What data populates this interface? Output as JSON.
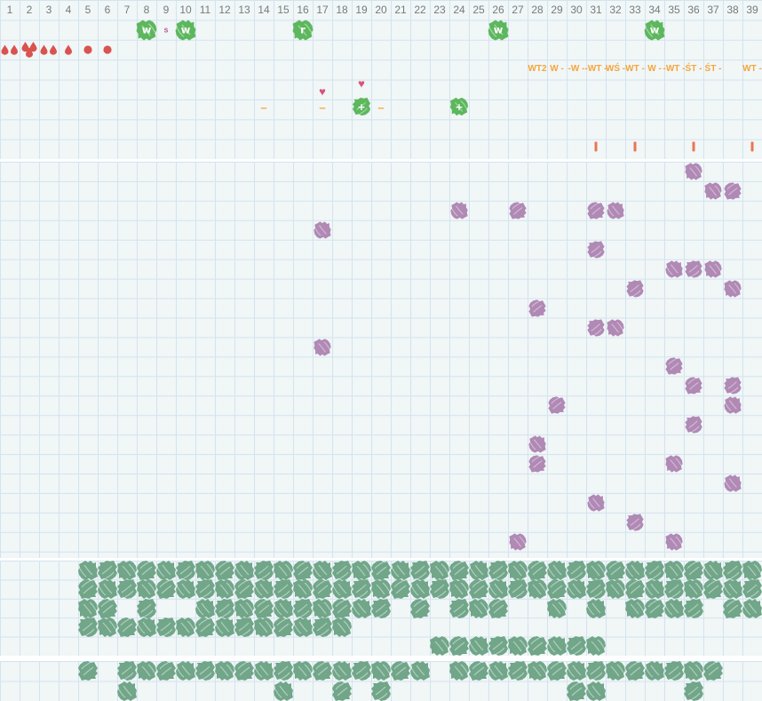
{
  "colors": {
    "cell_bg": "#f1f6f7",
    "grid_line": "#d2e4ee",
    "separator": "#ffffff",
    "day_number_text": "#747c7e",
    "bright_green": "#5db75d",
    "sage_green": "#71a689",
    "purple": "#b189b5",
    "flow_red": "#d9534f",
    "heart_pink": "#d6547a",
    "label_orange": "#f4a63c",
    "tick_orange": "#ec7550",
    "small_letter_pink": "#bb5f9b",
    "blob_letter_white": "#ffffff"
  },
  "day_header": {
    "days": [
      1,
      2,
      3,
      4,
      5,
      6,
      7,
      8,
      9,
      10,
      11,
      12,
      13,
      14,
      15,
      16,
      17,
      18,
      19,
      20,
      21,
      22,
      23,
      24,
      25,
      26,
      27,
      28,
      29,
      30,
      31,
      32,
      33,
      34,
      35,
      36,
      37,
      38,
      39
    ]
  },
  "top_section": {
    "letter_marks": [
      {
        "day": 8,
        "letter": "w"
      },
      {
        "day": 10,
        "letter": "w"
      },
      {
        "day": 16,
        "letter": "r"
      },
      {
        "day": 26,
        "letter": "w"
      },
      {
        "day": 34,
        "letter": "w"
      }
    ],
    "small_letter_mark": {
      "day": 9,
      "letter": "s"
    },
    "flow_marks": [
      {
        "day": 1,
        "icon": "drops-2"
      },
      {
        "day": 2,
        "icon": "drops-3"
      },
      {
        "day": 3,
        "icon": "drops-2"
      },
      {
        "day": 4,
        "icon": "drop-1"
      },
      {
        "day": 5,
        "icon": "dot"
      },
      {
        "day": 6,
        "icon": "dot"
      }
    ],
    "weekday_labels": [
      {
        "day": 28,
        "text": "WT2"
      },
      {
        "day": 29,
        "text": "W -"
      },
      {
        "day": 30,
        "text": "-W -"
      },
      {
        "day": 31,
        "text": "-WT -"
      },
      {
        "day": 32,
        "text": "WŚ -"
      },
      {
        "day": 33,
        "text": "WT -"
      },
      {
        "day": 34,
        "text": "W -"
      },
      {
        "day": 35,
        "text": "-WT -"
      },
      {
        "day": 36,
        "text": "ŚT -"
      },
      {
        "day": 37,
        "text": "ŚT -"
      },
      {
        "day": 39,
        "text": "WT -"
      }
    ],
    "heart_marks": [
      {
        "day": 17,
        "raised": false,
        "glyph": "♥"
      },
      {
        "day": 19,
        "raised": true,
        "glyph": "♥"
      }
    ],
    "dash_marks": {
      "days": [
        14,
        17,
        20
      ],
      "glyph": "–"
    },
    "plus_marks": {
      "days": [
        19,
        24
      ],
      "letter": "+"
    },
    "tick_marks": {
      "days": [
        31,
        33,
        36,
        39
      ]
    }
  },
  "main_grid": {
    "row_count": 20,
    "marks": [
      {
        "row": 1,
        "days": [
          36
        ]
      },
      {
        "row": 2,
        "days": [
          37,
          38
        ]
      },
      {
        "row": 3,
        "days": [
          24,
          27,
          31,
          32
        ]
      },
      {
        "row": 4,
        "days": [
          17
        ]
      },
      {
        "row": 5,
        "days": [
          31
        ]
      },
      {
        "row": 6,
        "days": [
          35,
          36,
          37
        ]
      },
      {
        "row": 7,
        "days": [
          33,
          38
        ]
      },
      {
        "row": 8,
        "days": [
          28
        ]
      },
      {
        "row": 9,
        "days": [
          31,
          32
        ]
      },
      {
        "row": 10,
        "days": [
          17
        ]
      },
      {
        "row": 11,
        "days": [
          35
        ]
      },
      {
        "row": 12,
        "days": [
          36,
          38
        ]
      },
      {
        "row": 13,
        "days": [
          29,
          38
        ]
      },
      {
        "row": 14,
        "days": [
          36
        ]
      },
      {
        "row": 15,
        "days": [
          28
        ]
      },
      {
        "row": 16,
        "days": [
          28,
          35
        ]
      },
      {
        "row": 17,
        "days": [
          38
        ]
      },
      {
        "row": 18,
        "days": [
          31
        ]
      },
      {
        "row": 19,
        "days": [
          33
        ]
      },
      {
        "row": 20,
        "days": [
          27,
          35
        ]
      }
    ]
  },
  "bottom_grid": {
    "rows": [
      {
        "days": [
          5,
          6,
          7,
          8,
          9,
          10,
          11,
          12,
          13,
          14,
          15,
          16,
          17,
          18,
          19,
          20,
          21,
          22,
          23,
          24,
          25,
          26,
          27,
          28,
          29,
          30,
          31,
          32,
          33,
          34,
          35,
          36,
          37,
          38,
          39
        ]
      },
      {
        "days": [
          5,
          6,
          7,
          8,
          9,
          10,
          11,
          12,
          13,
          14,
          15,
          16,
          17,
          18,
          19,
          20,
          21,
          22,
          23,
          24,
          25,
          26,
          27,
          28,
          29,
          30,
          31,
          32,
          33,
          34,
          35,
          36,
          37,
          38,
          39
        ]
      },
      {
        "days": [
          5,
          6,
          8,
          11,
          12,
          13,
          14,
          15,
          16,
          17,
          18,
          19,
          20,
          22,
          24,
          25,
          26,
          29,
          31,
          33,
          34,
          35,
          36,
          38,
          39
        ]
      },
      {
        "days": [
          5,
          6,
          7,
          8,
          9,
          10,
          11,
          12,
          13,
          14,
          15,
          16,
          17,
          18
        ]
      },
      {
        "days": [
          23,
          24,
          25,
          26,
          27,
          28,
          29,
          30,
          31
        ]
      }
    ]
  },
  "footer_grid": {
    "rows": [
      {
        "days": [
          5,
          7,
          8,
          9,
          10,
          11,
          12,
          13,
          14,
          15,
          16,
          17,
          18,
          19,
          20,
          21,
          22,
          24,
          25,
          26,
          27,
          28,
          29,
          30,
          31,
          32,
          33,
          34,
          35,
          36,
          37
        ]
      },
      {
        "days": [
          7,
          15,
          18,
          20,
          30,
          31,
          36
        ]
      }
    ]
  }
}
